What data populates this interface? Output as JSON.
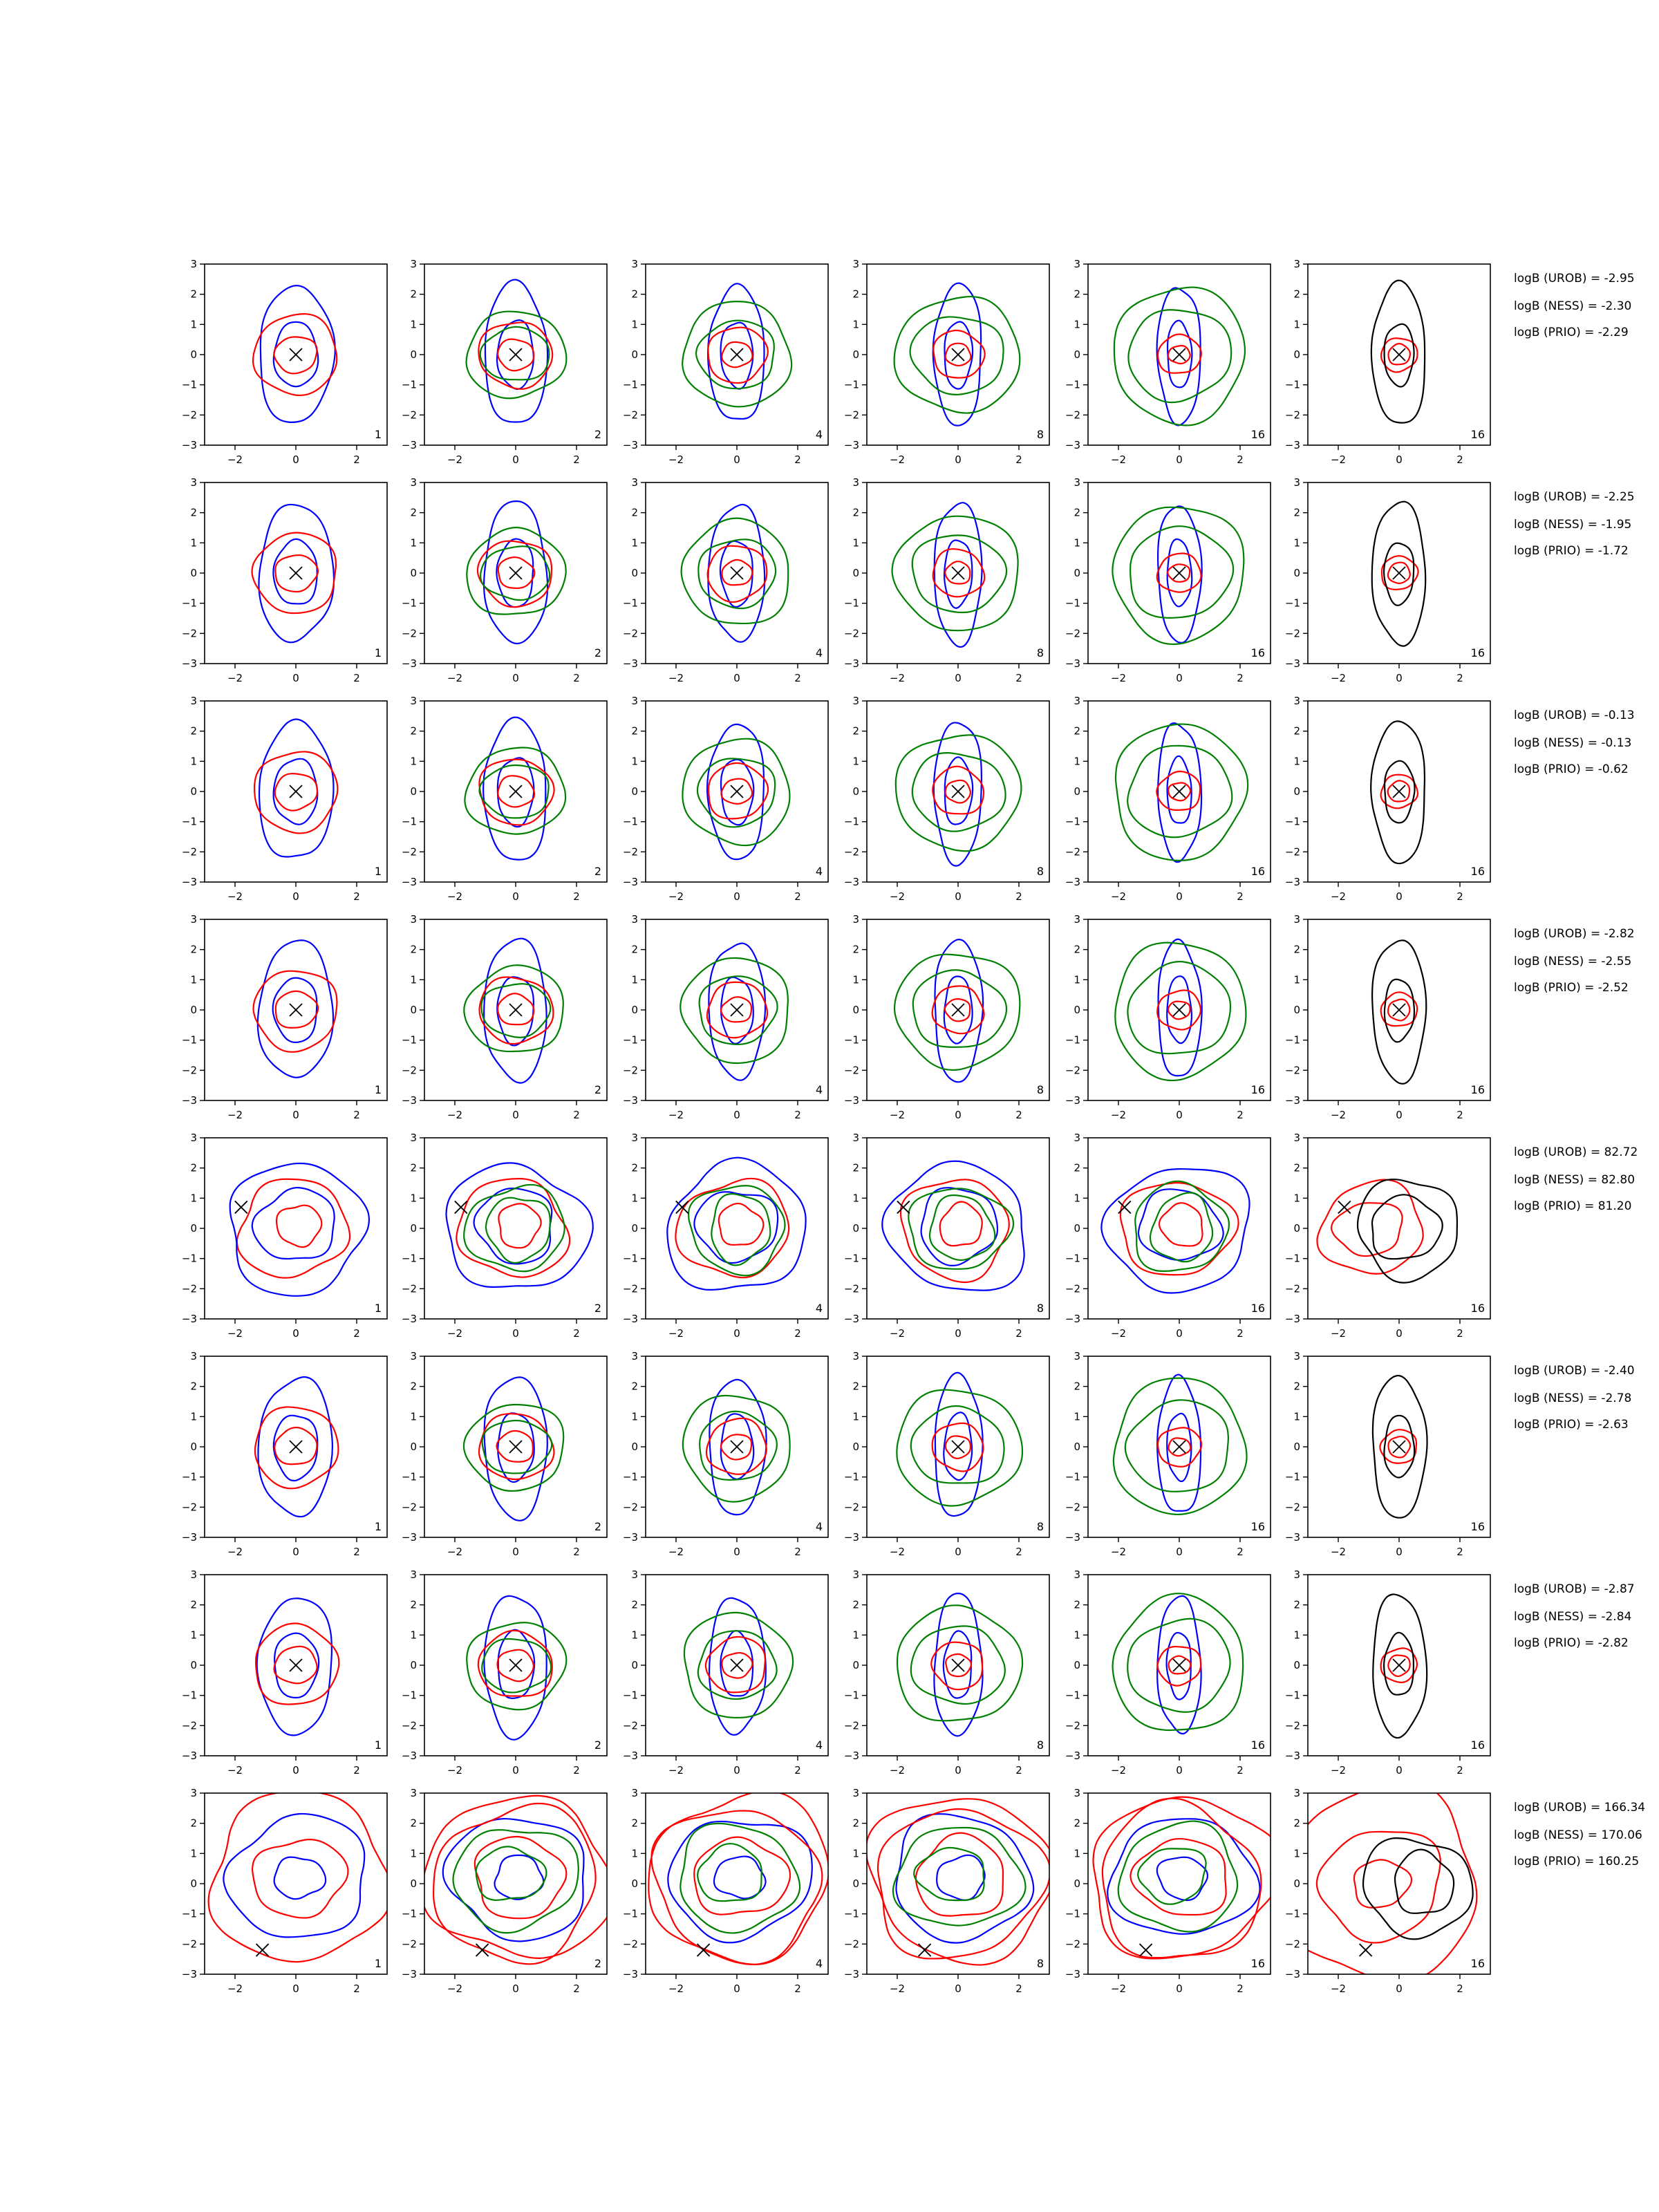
{
  "chart_data": {
    "type": "contour-grid",
    "rows": 8,
    "cols": 6,
    "xlim": [
      -3,
      3
    ],
    "ylim": [
      -3,
      3
    ],
    "xticks": [
      -2,
      0,
      2
    ],
    "yticks": [
      -3,
      -2,
      -1,
      0,
      1,
      2,
      3
    ],
    "panel_labels": [
      "1",
      "2",
      "4",
      "8",
      "16",
      "16"
    ],
    "series_colors": {
      "blue": "#0000ff",
      "red": "#ff0000",
      "green": "#008000",
      "black": "#000000"
    },
    "marker": "x",
    "marker_positions": [
      [
        0,
        0
      ],
      [
        0,
        0
      ],
      [
        0,
        0
      ],
      [
        0,
        0
      ],
      [
        -1.8,
        0.7
      ],
      [
        0,
        0
      ],
      [
        0,
        0
      ],
      [
        -1.1,
        -2.2
      ]
    ],
    "annotations": [
      [
        "logB (UROB) = -2.95",
        "logB (NESS) = -2.30",
        "logB (PRIO) = -2.29"
      ],
      [
        "logB (UROB) = -2.25",
        "logB (NESS) = -1.95",
        "logB (PRIO) = -1.72"
      ],
      [
        "logB (UROB) = -0.13",
        "logB (NESS) = -0.13",
        "logB (PRIO) = -0.62"
      ],
      [
        "logB (UROB) = -2.82",
        "logB (NESS) = -2.55",
        "logB (PRIO) = -2.52"
      ],
      [
        "logB (UROB) = 82.72",
        "logB (NESS) = 82.80",
        "logB (PRIO) = 81.20"
      ],
      [
        "logB (UROB) = -2.40",
        "logB (NESS) = -2.78",
        "logB (PRIO) = -2.63"
      ],
      [
        "logB (UROB) = -2.87",
        "logB (NESS) = -2.84",
        "logB (PRIO) = -2.82"
      ],
      [
        "logB (UROB) = 166.34",
        "logB (NESS) = 170.06",
        "logB (PRIO) = 160.25"
      ]
    ],
    "row_types": [
      "centered",
      "centered",
      "centered",
      "centered",
      "shifted",
      "centered",
      "centered",
      "wide"
    ]
  }
}
